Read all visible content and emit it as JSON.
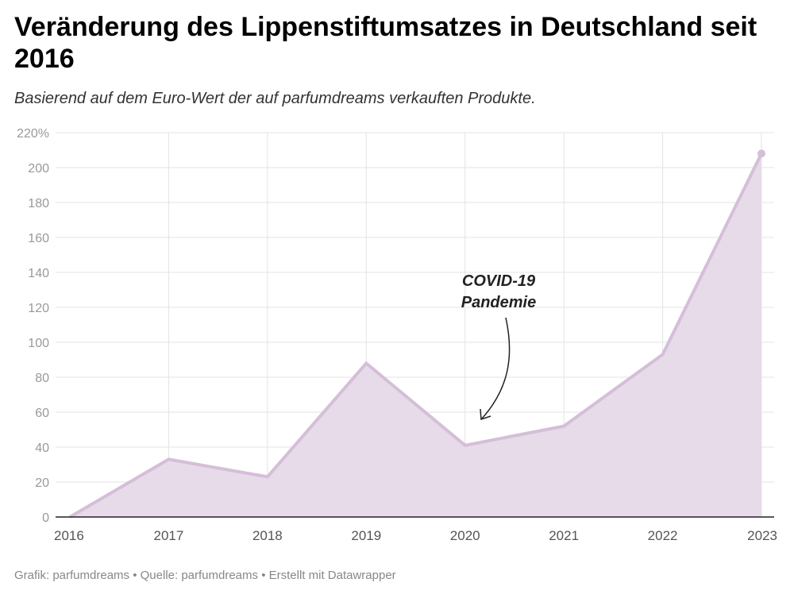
{
  "title": "Veränderung des Lippenstiftumsatzes in Deutschland seit 2016",
  "subtitle": "Basierend auf dem Euro-Wert der auf parfumdreams verkauften Produkte.",
  "footer": "Grafik: parfumdreams • Quelle: parfumdreams • Erstellt mit Datawrapper",
  "chart_data": {
    "type": "area",
    "x": [
      "2016",
      "2017",
      "2018",
      "2019",
      "2020",
      "2021",
      "2022",
      "2023"
    ],
    "values": [
      0,
      33,
      23,
      88,
      41,
      52,
      93,
      208
    ],
    "ylim": [
      0,
      220
    ],
    "yticks": [
      0,
      20,
      40,
      60,
      80,
      100,
      120,
      140,
      160,
      180,
      200,
      220
    ],
    "ytick_labels": [
      "0",
      "20",
      "40",
      "60",
      "80",
      "100",
      "120",
      "140",
      "160",
      "180",
      "200",
      "220%"
    ],
    "grid": true,
    "annotation": {
      "line1": "COVID-19",
      "line2": "Pandemie",
      "x": "2020"
    },
    "colors": {
      "line": "#d5bed8",
      "fill": "#e7dbea"
    }
  }
}
